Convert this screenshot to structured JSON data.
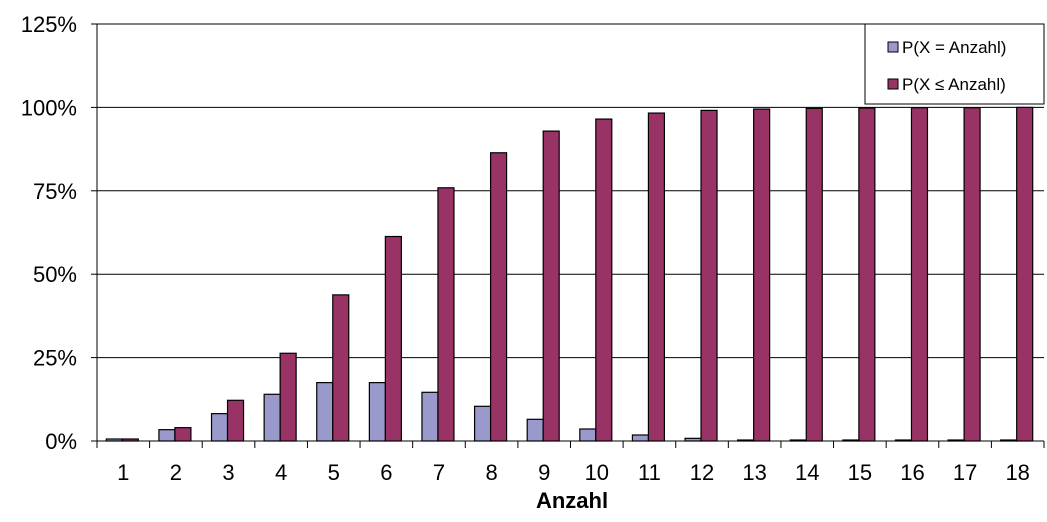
{
  "chart_data": {
    "type": "bar",
    "xlabel": "Anzahl",
    "ylabel": "",
    "ylim": [
      0,
      125
    ],
    "yticks": [
      0,
      25,
      50,
      75,
      100,
      125
    ],
    "ytick_labels": [
      "0%",
      "25%",
      "50%",
      "75%",
      "100%",
      "125%"
    ],
    "categories": [
      "1",
      "2",
      "3",
      "4",
      "5",
      "6",
      "7",
      "8",
      "9",
      "10",
      "11",
      "12",
      "13",
      "14",
      "15",
      "16",
      "17",
      "18"
    ],
    "grid": true,
    "legend_position": "top-right",
    "series": [
      {
        "name": "P(X = Anzahl)",
        "color": "#9999cc",
        "values": [
          0.6,
          3.4,
          8.2,
          14.0,
          17.5,
          17.5,
          14.6,
          10.4,
          6.5,
          3.6,
          1.8,
          0.8,
          0.3,
          0.1,
          0.05,
          0.02,
          0.01,
          0.0
        ]
      },
      {
        "name": "P(X ≤ Anzahl)",
        "color": "#993366",
        "values": [
          0.6,
          4.0,
          12.2,
          26.3,
          43.8,
          61.3,
          75.9,
          86.4,
          92.9,
          96.5,
          98.3,
          99.1,
          99.5,
          99.7,
          99.8,
          99.9,
          99.9,
          100.0
        ]
      }
    ]
  }
}
